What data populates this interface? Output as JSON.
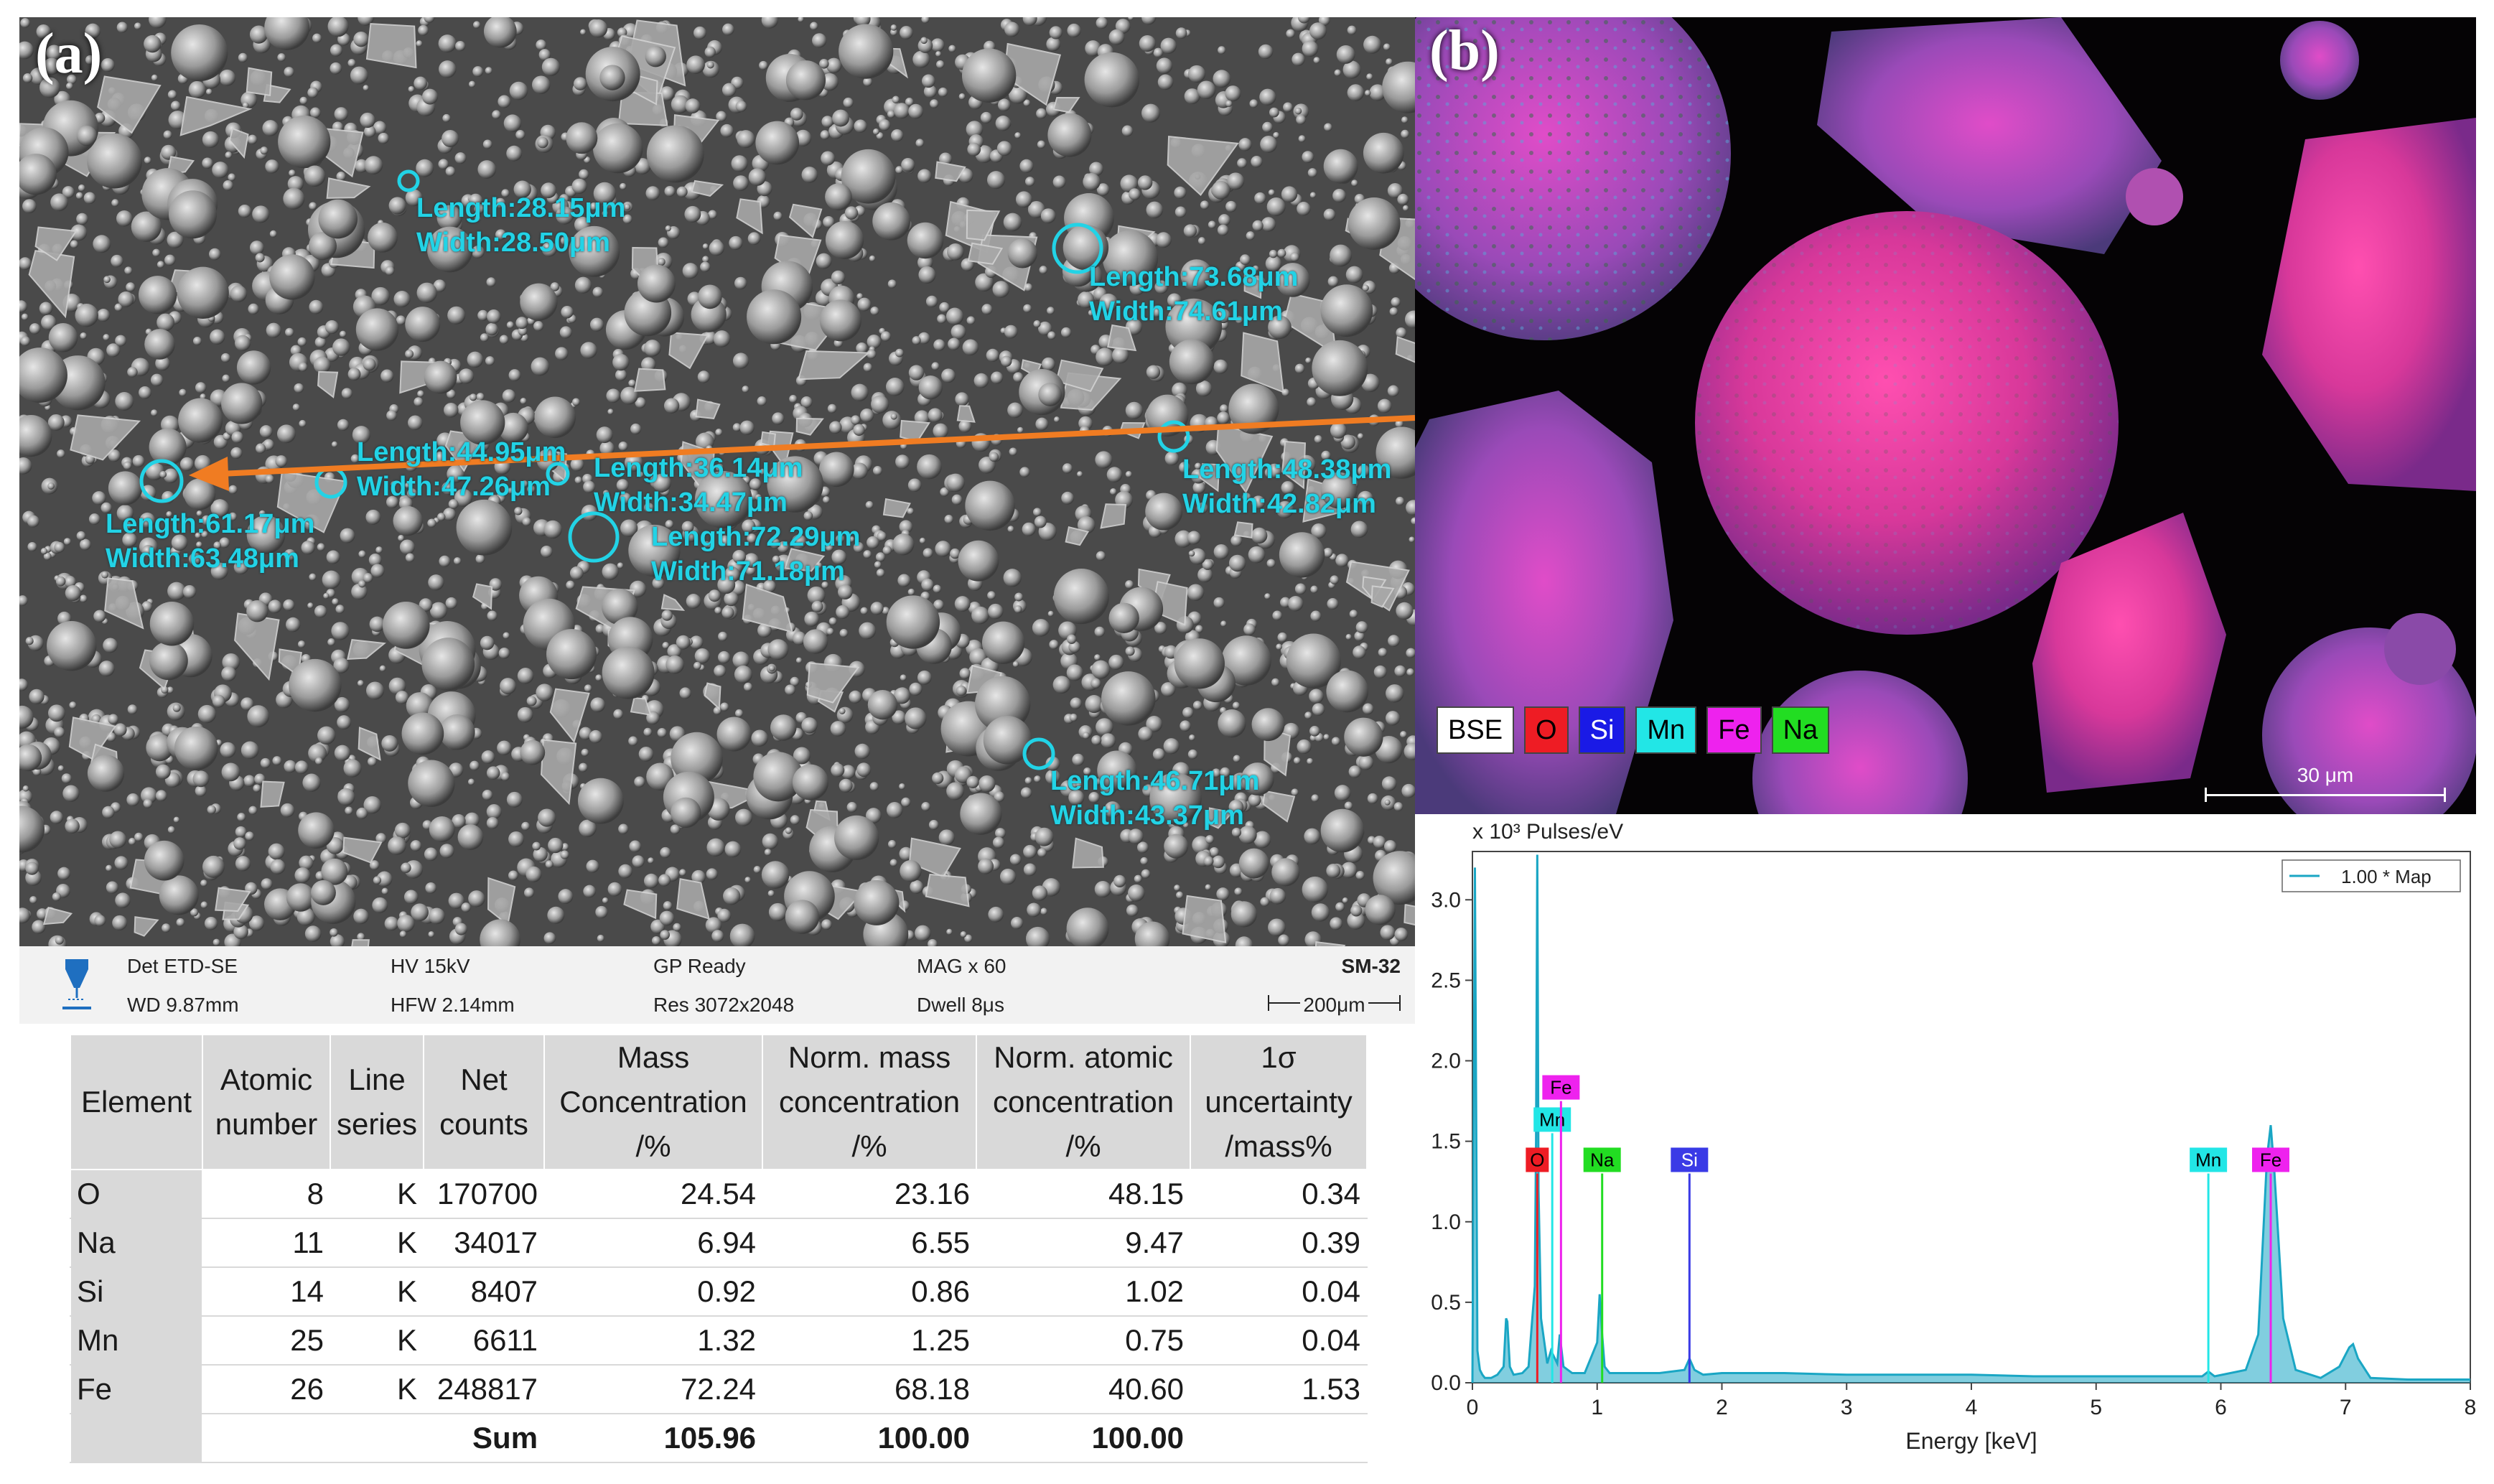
{
  "panel_a": {
    "label": "(a)",
    "measurements": [
      {
        "length": "Length:28.15μm",
        "width": "Width:28.50μm"
      },
      {
        "length": "Length:73.68μm",
        "width": "Width:74.61μm"
      },
      {
        "length": "Length:44.95μm",
        "width": "Width:47.26μm"
      },
      {
        "length": "Length:36.14μm",
        "width": "Width:34.47μm"
      },
      {
        "length": "Length:48.38μm",
        "width": "Width:42.82μm"
      },
      {
        "length": "Length:61.17μm",
        "width": "Width:63.48μm"
      },
      {
        "length": "Length:72.29μm",
        "width": "Width:71.18μm"
      },
      {
        "length": "Length:46.71μm",
        "width": "Width:43.37μm"
      }
    ],
    "marker_color": "#22d3e6",
    "arrow_color": "#f07c22",
    "infobar": {
      "det": "Det ETD-SE",
      "wd": "WD 9.87mm",
      "hv": "HV 15kV",
      "hfw": "HFW 2.14mm",
      "gp": "GP Ready",
      "res": "Res 3072x2048",
      "mag": "MAG x 60",
      "dwell": "Dwell 8μs",
      "sample": "SM-32",
      "scale": "200μm"
    }
  },
  "table": {
    "headers": [
      [
        "Element"
      ],
      [
        "Atomic",
        "number"
      ],
      [
        "Line",
        "series"
      ],
      [
        "Net",
        "counts"
      ],
      [
        "Mass",
        "Concentration",
        "/%"
      ],
      [
        "Norm. mass",
        "concentration",
        "/%"
      ],
      [
        "Norm. atomic",
        "concentration",
        "/%"
      ],
      [
        "1σ",
        "uncertainty",
        "/mass%"
      ]
    ],
    "rows": [
      [
        "O",
        "8",
        "K",
        "170700",
        "24.54",
        "23.16",
        "48.15",
        "0.34"
      ],
      [
        "Na",
        "11",
        "K",
        "34017",
        "6.94",
        "6.55",
        "9.47",
        "0.39"
      ],
      [
        "Si",
        "14",
        "K",
        "8407",
        "0.92",
        "0.86",
        "1.02",
        "0.04"
      ],
      [
        "Mn",
        "25",
        "K",
        "6611",
        "1.32",
        "1.25",
        "0.75",
        "0.04"
      ],
      [
        "Fe",
        "26",
        "K",
        "248817",
        "72.24",
        "68.18",
        "40.60",
        "1.53"
      ]
    ],
    "sum_row": [
      "",
      "",
      "",
      "Sum",
      "105.96",
      "100.00",
      "100.00",
      ""
    ]
  },
  "panel_b": {
    "label": "(b)",
    "legend": [
      {
        "name": "BSE",
        "color": "#ffffff"
      },
      {
        "name": "O",
        "color": "#ee1c24"
      },
      {
        "name": "Si",
        "color": "#1a1ae6"
      },
      {
        "name": "Mn",
        "color": "#22e6e6"
      },
      {
        "name": "Fe",
        "color": "#ee22ee"
      },
      {
        "name": "Na",
        "color": "#22dd22"
      }
    ],
    "scale": "30 μm"
  },
  "chart_data": {
    "type": "line",
    "title": "",
    "unit_label": "x 10³  Pulses/eV",
    "xlabel": "Energy [keV]",
    "ylabel": "",
    "xlim": [
      0,
      8
    ],
    "ylim": [
      0,
      3.3
    ],
    "x_ticks": [
      0,
      1,
      2,
      3,
      4,
      5,
      6,
      7,
      8
    ],
    "y_ticks": [
      "0.0",
      "0.5",
      "1.0",
      "1.5",
      "2.0",
      "2.5",
      "3.0"
    ],
    "legend": {
      "label": "1.00 * Map",
      "position": "top-right"
    },
    "series": [
      {
        "name": "1.00 * Map",
        "color": "#1aa6c4",
        "x": [
          0.0,
          0.02,
          0.04,
          0.06,
          0.08,
          0.1,
          0.15,
          0.2,
          0.25,
          0.27,
          0.28,
          0.3,
          0.33,
          0.4,
          0.45,
          0.5,
          0.51,
          0.52,
          0.53,
          0.55,
          0.6,
          0.63,
          0.68,
          0.7,
          0.73,
          0.8,
          0.9,
          1.0,
          1.02,
          1.04,
          1.06,
          1.1,
          1.2,
          1.5,
          1.7,
          1.74,
          1.78,
          1.85,
          2.0,
          2.5,
          3.0,
          3.5,
          4.0,
          4.5,
          5.0,
          5.5,
          5.85,
          5.9,
          5.95,
          6.2,
          6.3,
          6.37,
          6.4,
          6.43,
          6.5,
          6.6,
          6.8,
          6.95,
          7.03,
          7.06,
          7.1,
          7.2,
          7.5,
          8.0
        ],
        "y": [
          0.0,
          3.2,
          0.2,
          0.08,
          0.05,
          0.03,
          0.03,
          0.05,
          0.1,
          0.4,
          0.38,
          0.1,
          0.05,
          0.06,
          0.1,
          0.6,
          1.5,
          3.28,
          1.2,
          0.4,
          0.12,
          0.2,
          0.12,
          0.3,
          0.1,
          0.06,
          0.06,
          0.25,
          0.55,
          0.3,
          0.1,
          0.06,
          0.06,
          0.06,
          0.08,
          0.15,
          0.08,
          0.05,
          0.06,
          0.06,
          0.05,
          0.05,
          0.05,
          0.04,
          0.04,
          0.04,
          0.04,
          0.07,
          0.04,
          0.08,
          0.3,
          1.4,
          1.6,
          1.3,
          0.4,
          0.08,
          0.03,
          0.1,
          0.22,
          0.24,
          0.15,
          0.03,
          0.02,
          0.02
        ]
      }
    ],
    "element_lines": [
      {
        "element": "O",
        "energy": 0.52,
        "height": 1.3,
        "color": "#ee1c24"
      },
      {
        "element": "Mn",
        "energy": 0.64,
        "height": 1.55,
        "color": "#22e6e6"
      },
      {
        "element": "Fe",
        "energy": 0.71,
        "height": 1.75,
        "color": "#ee22ee"
      },
      {
        "element": "Na",
        "energy": 1.04,
        "height": 1.3,
        "color": "#22dd22"
      },
      {
        "element": "Si",
        "energy": 1.74,
        "height": 1.3,
        "color": "#3a3ae6"
      },
      {
        "element": "Mn",
        "energy": 5.9,
        "height": 1.3,
        "color": "#22e6e6"
      },
      {
        "element": "Fe",
        "energy": 6.4,
        "height": 1.3,
        "color": "#ee22ee"
      }
    ]
  }
}
